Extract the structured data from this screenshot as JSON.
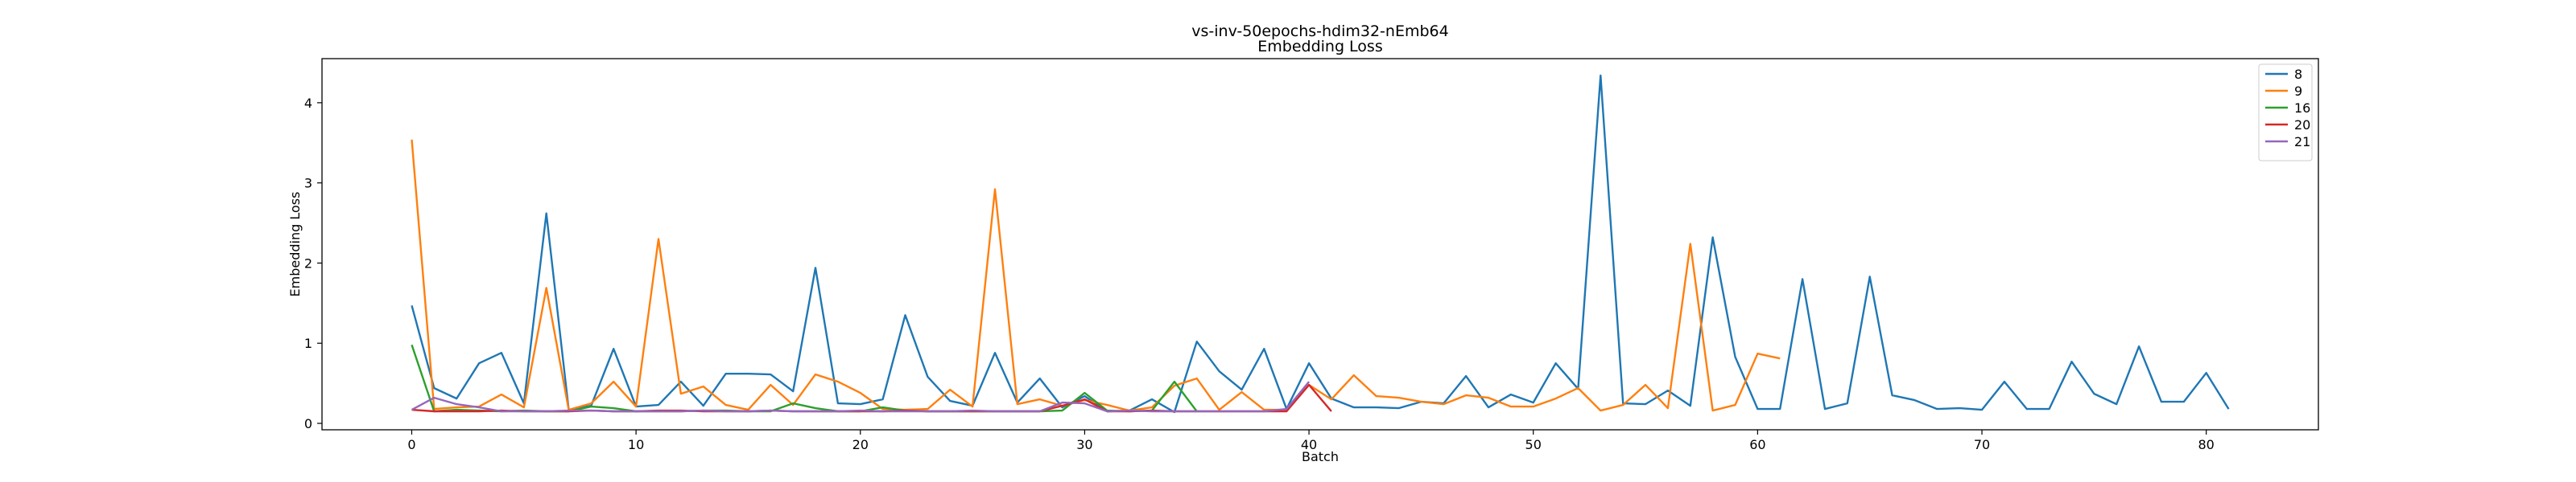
{
  "chart_data": {
    "type": "line",
    "title": "vs-inv-50epochs-hdim32-nEmb64",
    "subtitle": "Embedding Loss",
    "xlabel": "Batch",
    "ylabel": "Embedding Loss",
    "xlim": [
      -4,
      85
    ],
    "ylim": [
      -0.08,
      4.55
    ],
    "xticks": [
      0,
      10,
      20,
      30,
      40,
      50,
      60,
      70,
      80
    ],
    "yticks": [
      0,
      1,
      2,
      3,
      4
    ],
    "grid": false,
    "legend_position": "top-right",
    "series": [
      {
        "name": "8",
        "color": "#1f77b4",
        "values": [
          1.47,
          0.44,
          0.31,
          0.75,
          0.88,
          0.25,
          2.62,
          0.17,
          0.22,
          0.93,
          0.21,
          0.23,
          0.52,
          0.22,
          0.62,
          0.62,
          0.61,
          0.4,
          1.94,
          0.25,
          0.24,
          0.3,
          1.35,
          0.58,
          0.28,
          0.22,
          0.88,
          0.26,
          0.56,
          0.2,
          0.34,
          0.15,
          0.16,
          0.3,
          0.14,
          1.02,
          0.65,
          0.42,
          0.93,
          0.18,
          0.75,
          0.31,
          0.2,
          0.2,
          0.19,
          0.27,
          0.25,
          0.59,
          0.2,
          0.36,
          0.26,
          0.75,
          0.43,
          4.34,
          0.25,
          0.24,
          0.41,
          0.22,
          2.32,
          0.83,
          0.18,
          0.18,
          1.8,
          0.18,
          0.25,
          1.83,
          0.35,
          0.29,
          0.18,
          0.19,
          0.17,
          0.52,
          0.18,
          0.18,
          0.77,
          0.37,
          0.24,
          0.96,
          0.27,
          0.27,
          0.63,
          0.18
        ]
      },
      {
        "name": "9",
        "color": "#ff7f0e",
        "values": [
          3.54,
          0.18,
          0.2,
          0.21,
          0.36,
          0.2,
          1.69,
          0.17,
          0.25,
          0.52,
          0.21,
          2.3,
          0.37,
          0.46,
          0.23,
          0.17,
          0.48,
          0.23,
          0.61,
          0.52,
          0.38,
          0.18,
          0.17,
          0.18,
          0.42,
          0.21,
          2.92,
          0.24,
          0.3,
          0.22,
          0.29,
          0.23,
          0.16,
          0.2,
          0.47,
          0.56,
          0.17,
          0.39,
          0.17,
          0.17,
          0.48,
          0.3,
          0.6,
          0.34,
          0.32,
          0.27,
          0.24,
          0.35,
          0.32,
          0.21,
          0.21,
          0.31,
          0.44,
          0.16,
          0.23,
          0.48,
          0.19,
          2.24,
          0.16,
          0.23,
          0.87,
          0.81
        ]
      },
      {
        "name": "16",
        "color": "#2ca02c",
        "values": [
          0.98,
          0.15,
          0.17,
          0.16,
          0.15,
          0.16,
          0.15,
          0.15,
          0.21,
          0.19,
          0.15,
          0.15,
          0.15,
          0.16,
          0.16,
          0.15,
          0.15,
          0.25,
          0.19,
          0.15,
          0.15,
          0.2,
          0.16,
          0.15,
          0.15,
          0.15,
          0.15,
          0.15,
          0.15,
          0.16,
          0.38,
          0.16,
          0.15,
          0.16,
          0.52,
          0.15
        ]
      },
      {
        "name": "20",
        "color": "#d62728",
        "values": [
          0.17,
          0.15,
          0.15,
          0.15,
          0.16,
          0.15,
          0.15,
          0.15,
          0.16,
          0.15,
          0.15,
          0.16,
          0.16,
          0.15,
          0.15,
          0.15,
          0.16,
          0.15,
          0.15,
          0.15,
          0.15,
          0.15,
          0.16,
          0.15,
          0.15,
          0.15,
          0.15,
          0.15,
          0.15,
          0.22,
          0.3,
          0.15,
          0.15,
          0.16,
          0.15,
          0.15,
          0.15,
          0.15,
          0.15,
          0.15,
          0.48,
          0.15
        ]
      },
      {
        "name": "21",
        "color": "#9467bd",
        "values": [
          0.17,
          0.32,
          0.24,
          0.2,
          0.15,
          0.15,
          0.15,
          0.16,
          0.16,
          0.15,
          0.15,
          0.15,
          0.15,
          0.16,
          0.15,
          0.15,
          0.16,
          0.15,
          0.15,
          0.15,
          0.16,
          0.15,
          0.15,
          0.15,
          0.15,
          0.16,
          0.15,
          0.15,
          0.15,
          0.26,
          0.25,
          0.15,
          0.16,
          0.15,
          0.15,
          0.15,
          0.15,
          0.15,
          0.15,
          0.18,
          0.52
        ]
      }
    ]
  }
}
